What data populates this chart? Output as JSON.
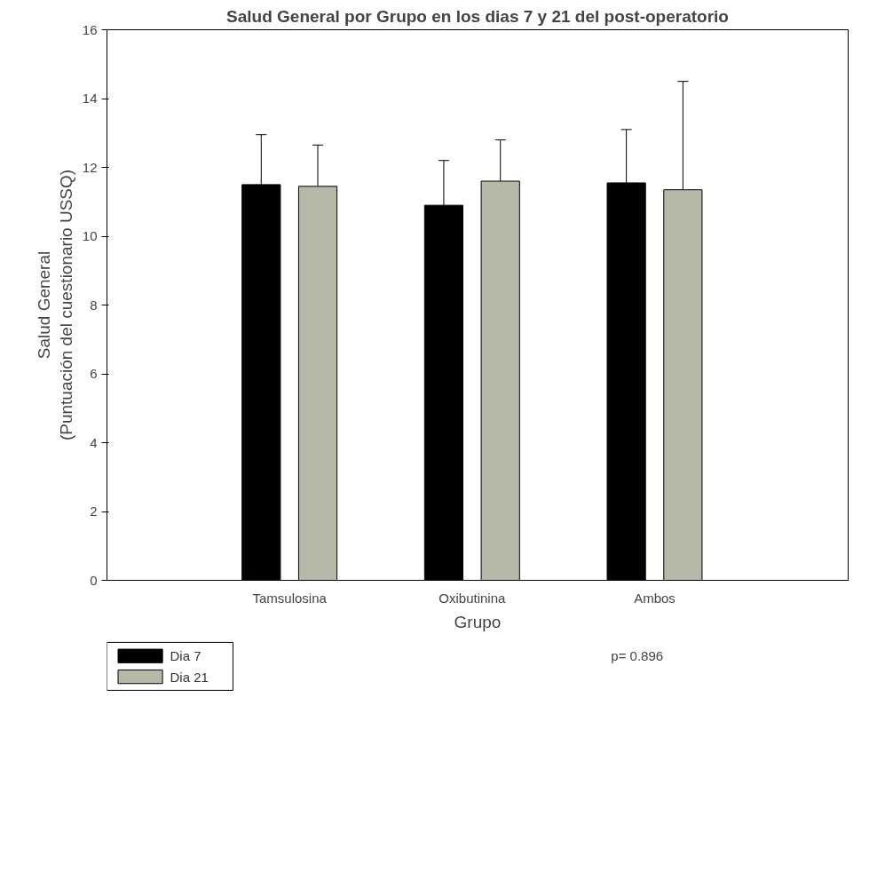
{
  "chart_data": {
    "type": "bar",
    "title": "Salud General por Grupo en los dias 7 y 21 del post-operatorio",
    "xlabel": "Grupo",
    "ylabel": "Salud General\n(Puntuación del cuestionario USSQ)",
    "categories": [
      "Tamsulosina",
      "Oxibutinina",
      "Ambos"
    ],
    "series": [
      {
        "name": "Dia 7",
        "color": "#000000",
        "values": [
          11.5,
          10.9,
          11.55
        ],
        "errors": [
          [
            11.5,
            12.95
          ],
          [
            10.9,
            12.2
          ],
          [
            11.55,
            13.1
          ]
        ]
      },
      {
        "name": "Dia 21",
        "color": "#b8b8a8",
        "values": [
          11.45,
          11.6,
          11.35
        ],
        "errors": [
          [
            11.45,
            12.65
          ],
          [
            11.6,
            12.8
          ],
          [
            11.35,
            14.5
          ]
        ]
      }
    ],
    "ylim": [
      0,
      16
    ],
    "yticks": [
      0,
      2,
      4,
      6,
      8,
      10,
      12,
      14,
      16
    ],
    "grid": false,
    "legend": "bottom left",
    "annotations": [
      "p= 0.896"
    ]
  }
}
